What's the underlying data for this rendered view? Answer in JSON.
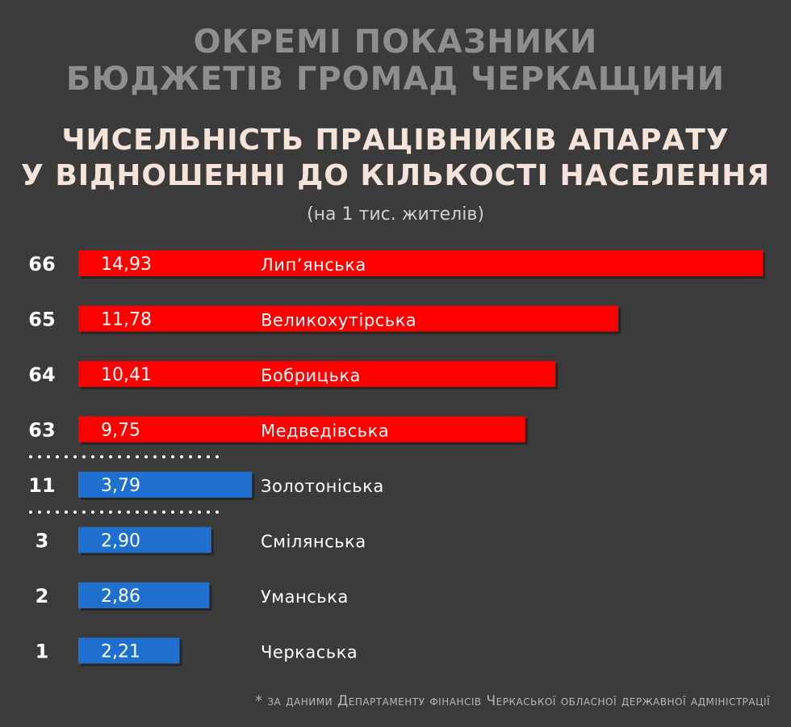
{
  "header": {
    "title_line1": "ОКРЕМІ ПОКАЗНИКИ",
    "title_line2": "БЮДЖЕТІВ ГРОМАД ЧЕРКАЩИНИ",
    "subtitle_line1": "ЧИСЕЛЬНІСТЬ ПРАЦІВНИКІВ АПАРАТУ",
    "subtitle_line2": "У ВІДНОШЕННІ ДО КІЛЬКОСТІ НАСЕЛЕННЯ",
    "unit": "(на 1 тис. жителів)"
  },
  "footnote": "* за даними Департаменту фінансів Черкаської обласної державної адміністрації",
  "colors": {
    "red": "#ff0000",
    "blue": "#1f6fcf",
    "background": "#3b3b3b"
  },
  "chart_data": {
    "type": "bar",
    "orientation": "horizontal",
    "categories": [
      "Лип’янська",
      "Великохутірська",
      "Бобрицька",
      "Медведівська",
      "Золотоніська",
      "Смілянська",
      "Уманська",
      "Черкаська"
    ],
    "ranks": [
      "66",
      "65",
      "64",
      "63",
      "11",
      "3",
      "2",
      "1"
    ],
    "values": [
      14.93,
      11.78,
      10.41,
      9.75,
      3.79,
      2.9,
      2.86,
      2.21
    ],
    "value_labels": [
      "14,93",
      "11,78",
      "10,41",
      "9,75",
      "3,79",
      "2,90",
      "2,86",
      "2,21"
    ],
    "bar_colors": [
      "#ff0000",
      "#ff0000",
      "#ff0000",
      "#ff0000",
      "#1f6fcf",
      "#1f6fcf",
      "#1f6fcf",
      "#1f6fcf"
    ],
    "gap_markers_after": [
      3,
      4
    ],
    "xlim": [
      0,
      14.93
    ],
    "grid": false
  }
}
